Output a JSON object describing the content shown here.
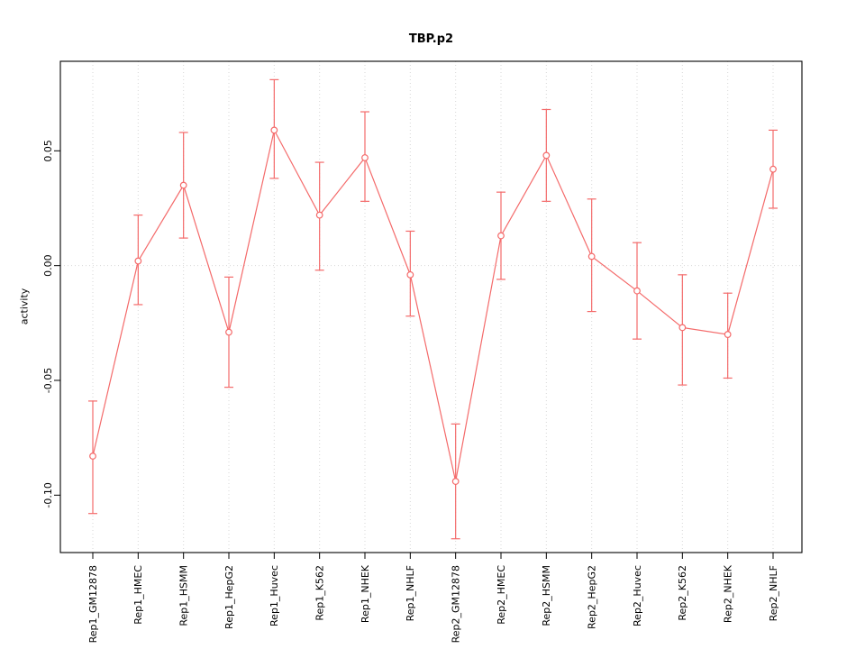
{
  "chart_data": {
    "type": "line",
    "title": "TBP.p2",
    "ylabel": "activity",
    "xlabel": "",
    "categories": [
      "Rep1_GM12878",
      "Rep1_HMEC",
      "Rep1_HSMM",
      "Rep1_HepG2",
      "Rep1_Huvec",
      "Rep1_K562",
      "Rep1_NHEK",
      "Rep1_NHLF",
      "Rep2_GM12878",
      "Rep2_HMEC",
      "Rep2_HSMM",
      "Rep2_HepG2",
      "Rep2_Huvec",
      "Rep2_K562",
      "Rep2_NHEK",
      "Rep2_NHLF"
    ],
    "values": [
      -0.083,
      0.002,
      0.035,
      -0.029,
      0.059,
      0.022,
      0.047,
      -0.004,
      -0.094,
      0.013,
      0.048,
      0.004,
      -0.011,
      -0.027,
      -0.03,
      0.042
    ],
    "error_low": [
      -0.108,
      -0.017,
      0.012,
      -0.053,
      0.038,
      -0.002,
      0.028,
      -0.022,
      -0.119,
      -0.006,
      0.028,
      -0.02,
      -0.032,
      -0.052,
      -0.049,
      0.025
    ],
    "error_high": [
      -0.059,
      0.022,
      0.058,
      -0.005,
      0.081,
      0.045,
      0.067,
      0.015,
      -0.069,
      0.032,
      0.068,
      0.029,
      0.01,
      -0.004,
      -0.012,
      0.059
    ],
    "ylim": [
      -0.125,
      0.089
    ],
    "yticks": [
      -0.1,
      -0.05,
      0.0,
      0.05
    ],
    "ytick_labels": [
      "-0.10",
      "-0.05",
      "0.00",
      "0.05"
    ],
    "grid": true,
    "legend_position": "none",
    "colors": {
      "series": "#f46a6a",
      "grid": "#d7d7d7",
      "box": "#000000",
      "point_fill": "#ffffff"
    }
  }
}
